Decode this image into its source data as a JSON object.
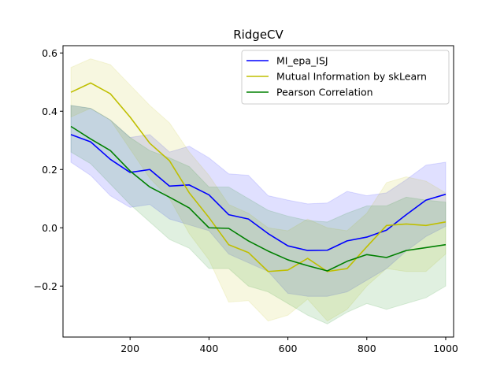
{
  "chart_data": {
    "type": "line",
    "title": "RidgeCV",
    "xlabel": "",
    "ylabel": "",
    "xlim": [
      30,
      1020
    ],
    "ylim": [
      -0.375,
      0.625
    ],
    "x_ticks": [
      200,
      400,
      600,
      800,
      1000
    ],
    "y_ticks": [
      -0.2,
      0.0,
      0.2,
      0.4,
      0.6
    ],
    "x_tick_labels": [
      "200",
      "400",
      "600",
      "800",
      "1000"
    ],
    "y_tick_labels": [
      "−0.2",
      "0.0",
      "0.2",
      "0.4",
      "0.6"
    ],
    "grid": false,
    "legend_position": "top-right",
    "x": [
      50,
      100,
      150,
      200,
      250,
      300,
      350,
      400,
      450,
      500,
      550,
      600,
      650,
      700,
      750,
      800,
      850,
      900,
      950,
      1000
    ],
    "series": [
      {
        "name": "MI_epa_ISJ",
        "color": "#0000ff",
        "values": [
          0.32,
          0.295,
          0.235,
          0.19,
          0.2,
          0.143,
          0.147,
          0.113,
          0.045,
          0.03,
          -0.02,
          -0.062,
          -0.078,
          -0.077,
          -0.045,
          -0.032,
          -0.008,
          0.045,
          0.095,
          0.115
        ],
        "upper": [
          0.42,
          0.41,
          0.37,
          0.31,
          0.32,
          0.26,
          0.28,
          0.24,
          0.185,
          0.18,
          0.11,
          0.095,
          0.082,
          0.085,
          0.125,
          0.11,
          0.12,
          0.165,
          0.215,
          0.225
        ],
        "lower": [
          0.225,
          0.18,
          0.11,
          0.07,
          0.08,
          0.03,
          0.01,
          -0.01,
          -0.09,
          -0.12,
          -0.15,
          -0.225,
          -0.235,
          -0.235,
          -0.22,
          -0.18,
          -0.14,
          -0.08,
          -0.03,
          0.005
        ]
      },
      {
        "name": "Mutual Information by skLearn",
        "color": "#bfbf00",
        "values": [
          0.465,
          0.497,
          0.46,
          0.38,
          0.29,
          0.23,
          0.12,
          0.035,
          -0.058,
          -0.085,
          -0.15,
          -0.145,
          -0.105,
          -0.15,
          -0.14,
          -0.065,
          0.008,
          0.013,
          0.008,
          0.02
        ],
        "upper": [
          0.55,
          0.58,
          0.56,
          0.49,
          0.42,
          0.36,
          0.26,
          0.18,
          0.08,
          0.05,
          0.0,
          -0.01,
          0.03,
          0.0,
          -0.01,
          0.05,
          0.155,
          0.175,
          0.16,
          0.12
        ],
        "lower": [
          0.38,
          0.41,
          0.37,
          0.27,
          0.17,
          0.1,
          -0.02,
          -0.11,
          -0.255,
          -0.25,
          -0.32,
          -0.3,
          -0.245,
          -0.32,
          -0.28,
          -0.2,
          -0.14,
          -0.15,
          -0.15,
          -0.09
        ]
      },
      {
        "name": "Pearson Correlation",
        "color": "#008000",
        "values": [
          0.348,
          0.305,
          0.265,
          0.195,
          0.14,
          0.105,
          0.068,
          0.0,
          -0.002,
          -0.045,
          -0.08,
          -0.11,
          -0.13,
          -0.148,
          -0.115,
          -0.092,
          -0.102,
          -0.078,
          -0.068,
          -0.058
        ],
        "upper": [
          0.42,
          0.41,
          0.37,
          0.31,
          0.265,
          0.24,
          0.21,
          0.14,
          0.14,
          0.1,
          0.06,
          0.04,
          0.025,
          0.02,
          0.05,
          0.075,
          0.075,
          0.105,
          0.095,
          0.088
        ],
        "lower": [
          0.26,
          0.22,
          0.15,
          0.08,
          0.02,
          -0.04,
          -0.07,
          -0.14,
          -0.14,
          -0.2,
          -0.22,
          -0.26,
          -0.3,
          -0.33,
          -0.29,
          -0.26,
          -0.28,
          -0.26,
          -0.24,
          -0.2
        ]
      }
    ]
  }
}
